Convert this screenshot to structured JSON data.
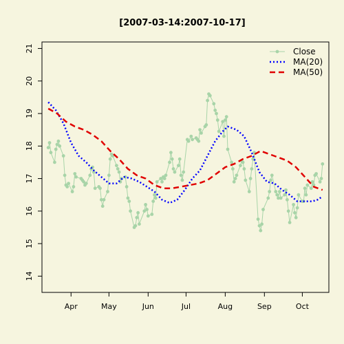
{
  "chart_data": {
    "type": "line",
    "title": "[2007-03-14:2007-10-17]",
    "xlabel": "",
    "ylabel": "",
    "x_range": [
      "2007-03-09",
      "2007-10-22"
    ],
    "ylim": [
      13.5,
      21.2
    ],
    "y_ticks": [
      14,
      15,
      16,
      17,
      18,
      19,
      20,
      21
    ],
    "x_ticks": [
      {
        "label": "Apr",
        "date": "2007-04-01"
      },
      {
        "label": "May",
        "date": "2007-05-01"
      },
      {
        "label": "Jun",
        "date": "2007-06-01"
      },
      {
        "label": "Jul",
        "date": "2007-07-01"
      },
      {
        "label": "Aug",
        "date": "2007-08-01"
      },
      {
        "label": "Sep",
        "date": "2007-09-01"
      },
      {
        "label": "Oct",
        "date": "2007-10-01"
      }
    ],
    "grid": false,
    "legend_position": "top-right",
    "series": [
      {
        "name": "Close",
        "color": "#a8d4a8",
        "style": "line-points",
        "points": [
          [
            "2007-03-14",
            17.95
          ],
          [
            "2007-03-15",
            18.1
          ],
          [
            "2007-03-16",
            17.8
          ],
          [
            "2007-03-19",
            17.5
          ],
          [
            "2007-03-20",
            17.9
          ],
          [
            "2007-03-21",
            18.05
          ],
          [
            "2007-03-22",
            18.15
          ],
          [
            "2007-03-23",
            18.0
          ],
          [
            "2007-03-26",
            17.7
          ],
          [
            "2007-03-27",
            17.1
          ],
          [
            "2007-03-28",
            16.8
          ],
          [
            "2007-03-29",
            16.75
          ],
          [
            "2007-03-30",
            16.85
          ],
          [
            "2007-04-02",
            16.6
          ],
          [
            "2007-04-03",
            16.75
          ],
          [
            "2007-04-04",
            17.15
          ],
          [
            "2007-04-05",
            17.05
          ],
          [
            "2007-04-09",
            17.0
          ],
          [
            "2007-04-10",
            16.95
          ],
          [
            "2007-04-11",
            16.9
          ],
          [
            "2007-04-12",
            16.8
          ],
          [
            "2007-04-13",
            16.85
          ],
          [
            "2007-04-16",
            17.1
          ],
          [
            "2007-04-17",
            17.3
          ],
          [
            "2007-04-18",
            17.35
          ],
          [
            "2007-04-19",
            17.2
          ],
          [
            "2007-04-20",
            16.7
          ],
          [
            "2007-04-23",
            16.75
          ],
          [
            "2007-04-24",
            16.7
          ],
          [
            "2007-04-25",
            16.35
          ],
          [
            "2007-04-26",
            16.15
          ],
          [
            "2007-04-27",
            16.35
          ],
          [
            "2007-04-30",
            16.6
          ],
          [
            "2007-05-01",
            17.1
          ],
          [
            "2007-05-02",
            17.6
          ],
          [
            "2007-05-03",
            17.75
          ],
          [
            "2007-05-04",
            17.7
          ],
          [
            "2007-05-07",
            17.4
          ],
          [
            "2007-05-08",
            17.3
          ],
          [
            "2007-05-09",
            17.2
          ],
          [
            "2007-05-10",
            16.9
          ],
          [
            "2007-05-11",
            17.0
          ],
          [
            "2007-05-14",
            17.05
          ],
          [
            "2007-05-15",
            16.75
          ],
          [
            "2007-05-16",
            16.4
          ],
          [
            "2007-05-17",
            16.3
          ],
          [
            "2007-05-18",
            16.0
          ],
          [
            "2007-05-21",
            15.5
          ],
          [
            "2007-05-22",
            15.55
          ],
          [
            "2007-05-23",
            15.8
          ],
          [
            "2007-05-24",
            15.95
          ],
          [
            "2007-05-25",
            15.6
          ],
          [
            "2007-05-29",
            16.0
          ],
          [
            "2007-05-30",
            16.2
          ],
          [
            "2007-05-31",
            16.05
          ],
          [
            "2007-06-01",
            15.85
          ],
          [
            "2007-06-04",
            15.9
          ],
          [
            "2007-06-05",
            16.3
          ],
          [
            "2007-06-06",
            16.5
          ],
          [
            "2007-06-07",
            16.4
          ],
          [
            "2007-06-08",
            16.9
          ],
          [
            "2007-06-11",
            17.0
          ],
          [
            "2007-06-12",
            16.9
          ],
          [
            "2007-06-13",
            17.05
          ],
          [
            "2007-06-14",
            17.0
          ],
          [
            "2007-06-15",
            17.1
          ],
          [
            "2007-06-18",
            17.5
          ],
          [
            "2007-06-19",
            17.8
          ],
          [
            "2007-06-20",
            17.6
          ],
          [
            "2007-06-21",
            17.3
          ],
          [
            "2007-06-22",
            17.2
          ],
          [
            "2007-06-25",
            17.4
          ],
          [
            "2007-06-26",
            17.6
          ],
          [
            "2007-06-27",
            17.1
          ],
          [
            "2007-06-28",
            16.95
          ],
          [
            "2007-06-29",
            17.2
          ],
          [
            "2007-07-02",
            18.2
          ],
          [
            "2007-07-03",
            18.15
          ],
          [
            "2007-07-05",
            18.3
          ],
          [
            "2007-07-06",
            18.2
          ],
          [
            "2007-07-09",
            18.25
          ],
          [
            "2007-07-10",
            18.2
          ],
          [
            "2007-07-11",
            18.15
          ],
          [
            "2007-07-12",
            18.5
          ],
          [
            "2007-07-13",
            18.4
          ],
          [
            "2007-07-16",
            18.6
          ],
          [
            "2007-07-17",
            18.65
          ],
          [
            "2007-07-18",
            19.4
          ],
          [
            "2007-07-19",
            19.6
          ],
          [
            "2007-07-20",
            19.55
          ],
          [
            "2007-07-23",
            19.3
          ],
          [
            "2007-07-24",
            19.1
          ],
          [
            "2007-07-25",
            19.0
          ],
          [
            "2007-07-26",
            18.8
          ],
          [
            "2007-07-27",
            18.45
          ],
          [
            "2007-07-30",
            18.75
          ],
          [
            "2007-07-31",
            18.3
          ],
          [
            "2007-08-01",
            18.8
          ],
          [
            "2007-08-02",
            18.9
          ],
          [
            "2007-08-03",
            17.9
          ],
          [
            "2007-08-06",
            17.5
          ],
          [
            "2007-08-07",
            17.3
          ],
          [
            "2007-08-08",
            16.9
          ],
          [
            "2007-08-09",
            17.0
          ],
          [
            "2007-08-10",
            17.1
          ],
          [
            "2007-08-13",
            17.4
          ],
          [
            "2007-08-14",
            17.55
          ],
          [
            "2007-08-15",
            17.5
          ],
          [
            "2007-08-16",
            17.3
          ],
          [
            "2007-08-17",
            16.95
          ],
          [
            "2007-08-20",
            16.6
          ],
          [
            "2007-08-21",
            17.0
          ],
          [
            "2007-08-22",
            17.3
          ],
          [
            "2007-08-23",
            17.6
          ],
          [
            "2007-08-24",
            17.8
          ],
          [
            "2007-08-27",
            15.75
          ],
          [
            "2007-08-28",
            15.55
          ],
          [
            "2007-08-29",
            15.4
          ],
          [
            "2007-08-30",
            15.6
          ],
          [
            "2007-08-31",
            16.05
          ],
          [
            "2007-09-04",
            16.4
          ],
          [
            "2007-09-05",
            16.6
          ],
          [
            "2007-09-06",
            16.95
          ],
          [
            "2007-09-07",
            17.1
          ],
          [
            "2007-09-10",
            16.6
          ],
          [
            "2007-09-11",
            16.5
          ],
          [
            "2007-09-12",
            16.4
          ],
          [
            "2007-09-13",
            16.6
          ],
          [
            "2007-09-14",
            16.4
          ],
          [
            "2007-09-17",
            16.5
          ],
          [
            "2007-09-18",
            16.65
          ],
          [
            "2007-09-19",
            16.35
          ],
          [
            "2007-09-20",
            16.0
          ],
          [
            "2007-09-21",
            15.65
          ],
          [
            "2007-09-24",
            16.2
          ],
          [
            "2007-09-25",
            15.95
          ],
          [
            "2007-09-26",
            15.8
          ],
          [
            "2007-09-27",
            16.1
          ],
          [
            "2007-09-28",
            16.5
          ],
          [
            "2007-10-01",
            16.3
          ],
          [
            "2007-10-02",
            16.3
          ],
          [
            "2007-10-03",
            16.7
          ],
          [
            "2007-10-04",
            16.5
          ],
          [
            "2007-10-05",
            16.8
          ],
          [
            "2007-10-08",
            16.7
          ],
          [
            "2007-10-09",
            16.9
          ],
          [
            "2007-10-10",
            16.8
          ],
          [
            "2007-10-11",
            17.1
          ],
          [
            "2007-10-12",
            17.15
          ],
          [
            "2007-10-15",
            16.9
          ],
          [
            "2007-10-16",
            17.0
          ],
          [
            "2007-10-17",
            17.45
          ]
        ]
      },
      {
        "name": "MA(20)",
        "color": "#0000ff",
        "style": "dotted",
        "points": [
          [
            "2007-03-14",
            19.35
          ],
          [
            "2007-03-20",
            19.1
          ],
          [
            "2007-03-26",
            18.7
          ],
          [
            "2007-04-01",
            18.1
          ],
          [
            "2007-04-07",
            17.7
          ],
          [
            "2007-04-13",
            17.5
          ],
          [
            "2007-04-19",
            17.25
          ],
          [
            "2007-04-25",
            17.05
          ],
          [
            "2007-05-01",
            16.85
          ],
          [
            "2007-05-07",
            16.85
          ],
          [
            "2007-05-13",
            17.05
          ],
          [
            "2007-05-19",
            17.0
          ],
          [
            "2007-05-25",
            16.9
          ],
          [
            "2007-05-31",
            16.75
          ],
          [
            "2007-06-06",
            16.6
          ],
          [
            "2007-06-12",
            16.35
          ],
          [
            "2007-06-18",
            16.25
          ],
          [
            "2007-06-24",
            16.35
          ],
          [
            "2007-06-30",
            16.65
          ],
          [
            "2007-07-06",
            17.0
          ],
          [
            "2007-07-12",
            17.25
          ],
          [
            "2007-07-18",
            17.7
          ],
          [
            "2007-07-24",
            18.15
          ],
          [
            "2007-07-30",
            18.45
          ],
          [
            "2007-08-03",
            18.6
          ],
          [
            "2007-08-10",
            18.5
          ],
          [
            "2007-08-16",
            18.3
          ],
          [
            "2007-08-22",
            17.8
          ],
          [
            "2007-08-28",
            17.2
          ],
          [
            "2007-09-03",
            16.9
          ],
          [
            "2007-09-09",
            16.85
          ],
          [
            "2007-09-15",
            16.65
          ],
          [
            "2007-09-21",
            16.5
          ],
          [
            "2007-09-27",
            16.3
          ],
          [
            "2007-10-03",
            16.3
          ],
          [
            "2007-10-09",
            16.3
          ],
          [
            "2007-10-13",
            16.35
          ],
          [
            "2007-10-17",
            16.45
          ]
        ]
      },
      {
        "name": "MA(50)",
        "color": "#e00000",
        "style": "dashed",
        "points": [
          [
            "2007-03-14",
            19.15
          ],
          [
            "2007-03-21",
            19.0
          ],
          [
            "2007-03-28",
            18.75
          ],
          [
            "2007-04-04",
            18.6
          ],
          [
            "2007-04-11",
            18.5
          ],
          [
            "2007-04-18",
            18.35
          ],
          [
            "2007-04-25",
            18.15
          ],
          [
            "2007-05-02",
            17.85
          ],
          [
            "2007-05-09",
            17.6
          ],
          [
            "2007-05-16",
            17.3
          ],
          [
            "2007-05-23",
            17.1
          ],
          [
            "2007-05-30",
            17.0
          ],
          [
            "2007-06-06",
            16.8
          ],
          [
            "2007-06-13",
            16.7
          ],
          [
            "2007-06-20",
            16.7
          ],
          [
            "2007-06-27",
            16.75
          ],
          [
            "2007-07-04",
            16.8
          ],
          [
            "2007-07-11",
            16.85
          ],
          [
            "2007-07-18",
            16.95
          ],
          [
            "2007-07-25",
            17.15
          ],
          [
            "2007-08-01",
            17.35
          ],
          [
            "2007-08-08",
            17.45
          ],
          [
            "2007-08-15",
            17.6
          ],
          [
            "2007-08-22",
            17.7
          ],
          [
            "2007-08-29",
            17.85
          ],
          [
            "2007-09-05",
            17.75
          ],
          [
            "2007-09-12",
            17.65
          ],
          [
            "2007-09-19",
            17.55
          ],
          [
            "2007-09-26",
            17.35
          ],
          [
            "2007-10-03",
            17.05
          ],
          [
            "2007-10-10",
            16.75
          ],
          [
            "2007-10-17",
            16.65
          ]
        ]
      }
    ]
  }
}
